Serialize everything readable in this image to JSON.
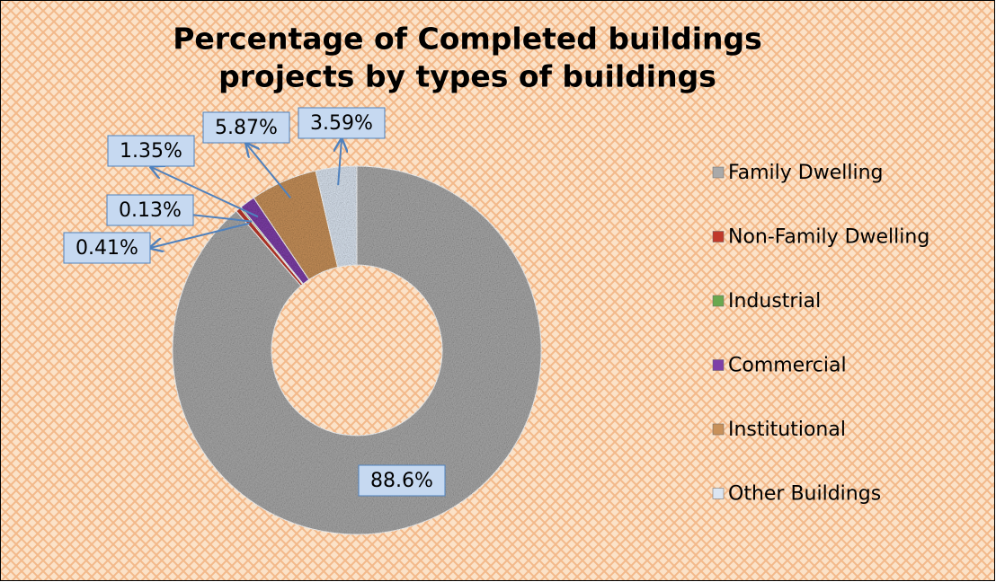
{
  "chart_data": {
    "type": "donut",
    "title": [
      "Percentage of Completed buildings",
      "projects by types of buildings"
    ],
    "categories": [
      "Family Dwelling",
      "Non-Family Dwelling",
      "Industrial",
      "Commercial",
      "Institutional",
      "Other Buildings"
    ],
    "values": [
      88.6,
      0.41,
      0.13,
      1.35,
      5.87,
      3.59
    ],
    "value_labels": [
      "88.6%",
      "0.41%",
      "0.13%",
      "1.35%",
      "5.87%",
      "3.59%"
    ],
    "colors": [
      "#a9a9a9",
      "#c0392b",
      "#6aa84f",
      "#7e3fa8",
      "#c8915a",
      "#dce6f2"
    ],
    "legend": "right"
  }
}
